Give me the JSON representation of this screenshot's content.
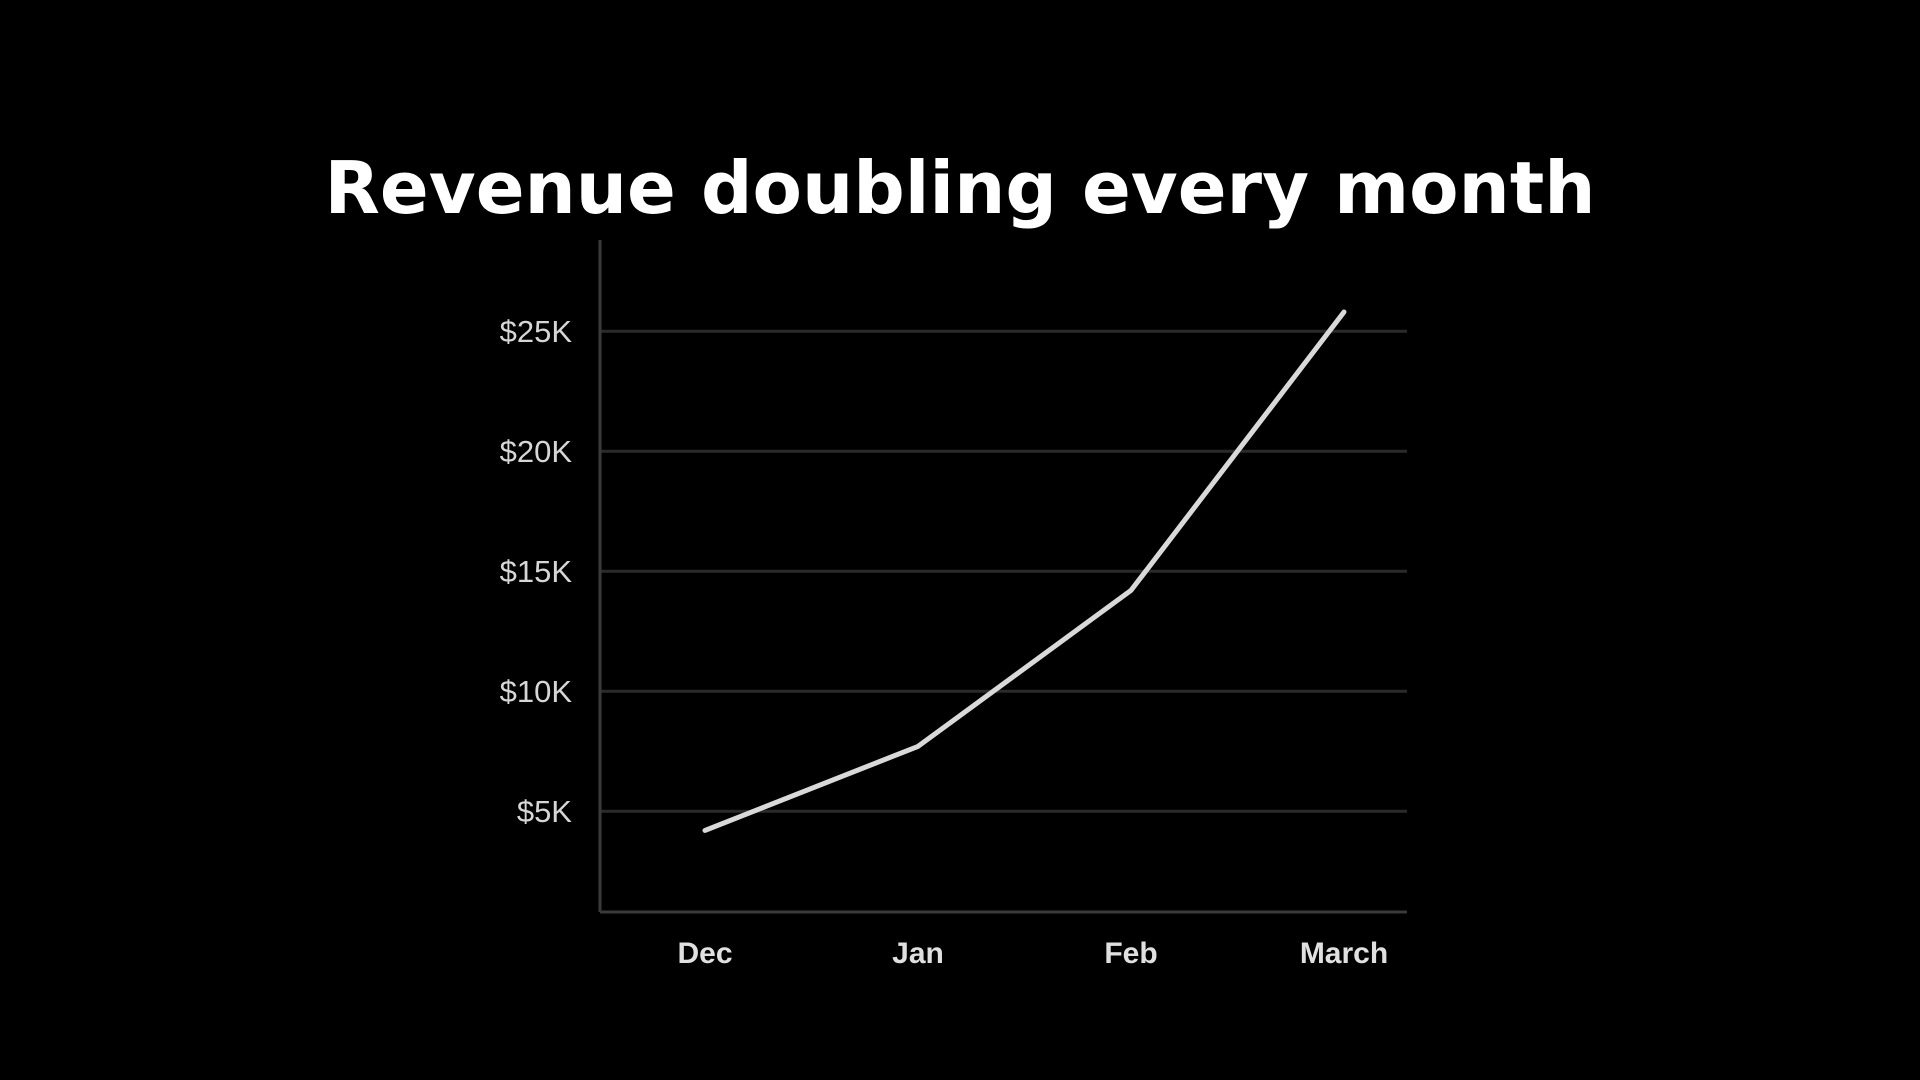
{
  "slide": {
    "title": "Revenue doubling every month"
  },
  "colors": {
    "background": "#000000",
    "title": "#ffffff",
    "line": "#d9d9d9",
    "gridline": "#2a2a2a",
    "axis": "#3a3a3a",
    "tick_text": "#d6d6d6"
  },
  "chart_data": {
    "type": "line",
    "title": "Revenue doubling every month",
    "xlabel": "",
    "ylabel": "",
    "categories": [
      "Dec",
      "Jan",
      "Feb",
      "March"
    ],
    "series": [
      {
        "values": [
          4200,
          7700,
          14200,
          25800
        ]
      }
    ],
    "yticks": [
      5000,
      10000,
      15000,
      20000,
      25000
    ],
    "ytick_labels": [
      "$5K",
      "$10K",
      "$15K",
      "$20K",
      "$25K"
    ],
    "ylim": [
      800,
      28800
    ],
    "grid": true,
    "legend": "none"
  }
}
